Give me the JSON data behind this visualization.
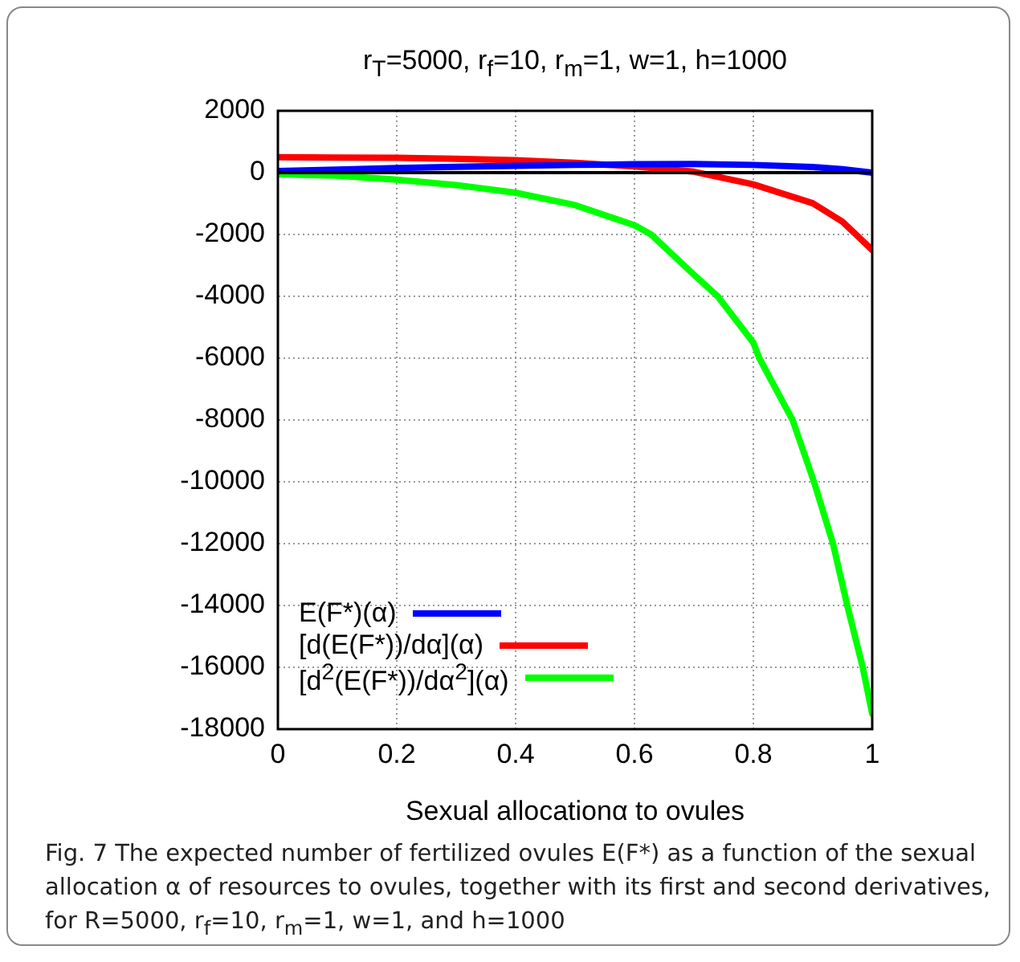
{
  "chart_data": {
    "type": "line",
    "title": "r$_{T}$=5000, r$_{f}$=10, r$_{m}$=1, w=1, h=1000",
    "xlabel": "Sexual allocationα to ovules",
    "annotations": [
      "Fig. 7 The expected number of fertilized ovules E(F*) as a function of the sexual allocation α of resources to ovules, together with its first and second derivatives, for R=5000, r$_{f}$=10, r$_{m}$=1, w=1, and h=1000"
    ],
    "xlim": [
      0,
      1
    ],
    "xticks": [
      0,
      0.2,
      0.4,
      0.6,
      0.8,
      1
    ],
    "ylim": [
      -18000,
      2000
    ],
    "yticks": [
      2000,
      0,
      -2000,
      -4000,
      -6000,
      -8000,
      -10000,
      -12000,
      -14000,
      -16000,
      -18000
    ],
    "grid": true,
    "legend": "bottom",
    "line_style": "solid",
    "ref_lines": [
      {
        "axis": "y",
        "value": 0,
        "color": "#000000"
      }
    ],
    "series": [
      {
        "name": "E(F*)(α)",
        "color": "#0000ff",
        "x": [
          0,
          0.1,
          0.2,
          0.3,
          0.4,
          0.5,
          0.6,
          0.7,
          0.8,
          0.9,
          0.95,
          1
        ],
        "values": [
          50,
          100,
          150,
          190,
          220,
          250,
          270,
          280,
          250,
          180,
          110,
          0
        ]
      },
      {
        "name": "[d(E(F*))/dα](α)",
        "color": "#ff0000",
        "x": [
          0,
          0.1,
          0.2,
          0.3,
          0.4,
          0.5,
          0.6,
          0.7,
          0.8,
          0.9,
          0.95,
          1
        ],
        "values": [
          500,
          490,
          480,
          450,
          400,
          320,
          200,
          30,
          -380,
          -990,
          -1590,
          -2500
        ]
      },
      {
        "name": "[d$^{2}$(E(F*))/dα$^{2}$](α)",
        "color": "#00ff00",
        "x": [
          0,
          0.1,
          0.2,
          0.3,
          0.4,
          0.5,
          0.6,
          0.628,
          0.7,
          0.74,
          0.8,
          0.81,
          0.83,
          0.866,
          0.902,
          0.934,
          0.958,
          0.984,
          1
        ],
        "values": [
          -50,
          -100,
          -230,
          -400,
          -650,
          -1050,
          -1700,
          -2000,
          -3300,
          -4000,
          -5500,
          -6000,
          -6720,
          -8000,
          -10000,
          -12000,
          -14000,
          -16000,
          -17500
        ]
      }
    ]
  }
}
